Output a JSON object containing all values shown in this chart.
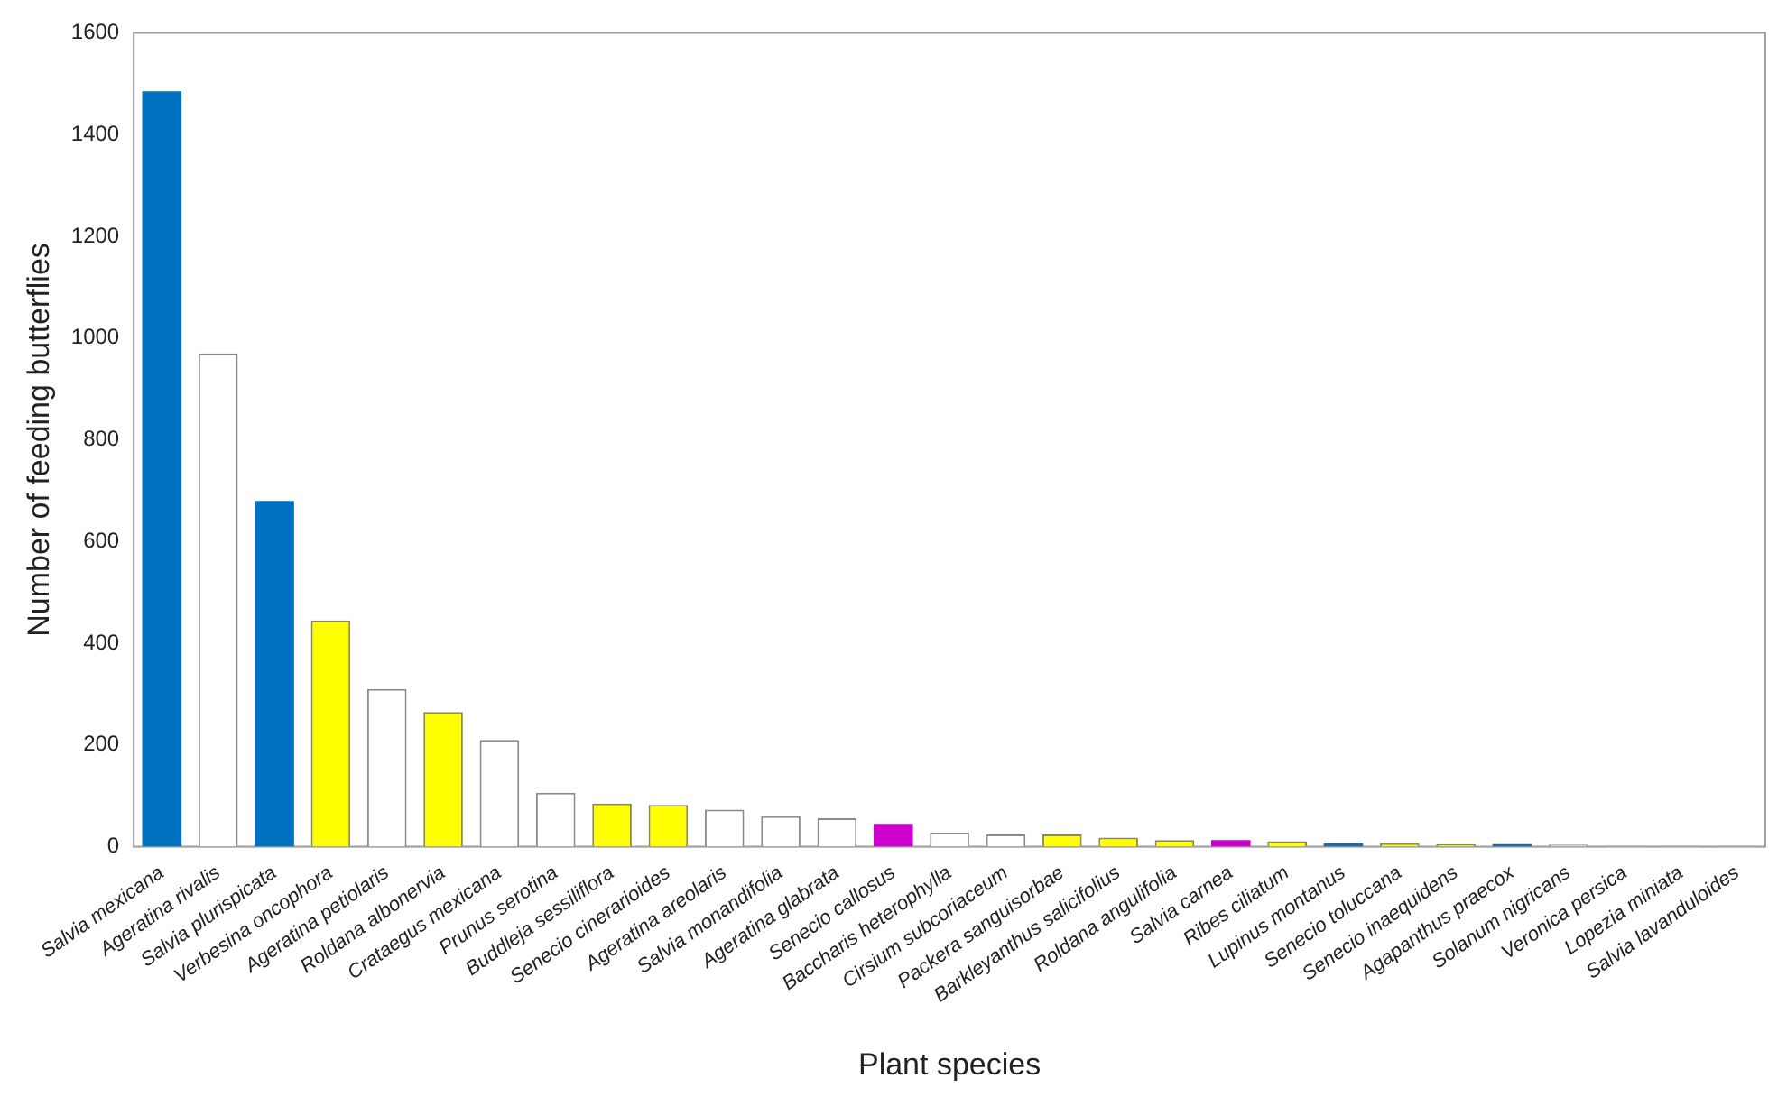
{
  "chart_data": {
    "type": "bar",
    "xlabel": "Plant species",
    "ylabel": "Number of feeding butterflies",
    "categories": [
      "Salvia mexicana",
      "Ageratina rivalis",
      "Salvia plurispicata",
      "Verbesina oncophora",
      "Ageratina petiolaris",
      "Roldana albonervia",
      "Crataegus mexicana",
      "Prunus serotina",
      "Buddleja sessiliflora",
      "Senecio cinerarioides",
      "Ageratina areolaris",
      "Salvia monandifolia",
      "Ageratina glabrata",
      "Senecio callosus",
      "Baccharis heterophylla",
      "Cirsium subcoriaceum",
      "Packera sanguisorbae",
      "Barkleyanthus salicifolius",
      "Roldana angulifolia",
      "Salvia carnea",
      "Ribes ciliatum",
      "Lupinus montanus",
      "Senecio toluccana",
      "Senecio inaequidens",
      "Agapanthus praecox",
      "Solanum nigricans",
      "Veronica persica",
      "Lopezia miniata",
      "Salvia lavanduloides"
    ],
    "values": [
      1485,
      970,
      680,
      445,
      310,
      265,
      210,
      106,
      85,
      82,
      73,
      60,
      56,
      45,
      28,
      24,
      24,
      18,
      13,
      13,
      11,
      7,
      7,
      5,
      5,
      4,
      2,
      2,
      2
    ],
    "colors": [
      "#0070c0",
      "#ffffff",
      "#0070c0",
      "#ffff00",
      "#ffffff",
      "#ffff00",
      "#ffffff",
      "#ffffff",
      "#ffff00",
      "#ffff00",
      "#ffffff",
      "#ffffff",
      "#ffffff",
      "#cc00cc",
      "#ffffff",
      "#ffffff",
      "#ffff00",
      "#ffff00",
      "#ffff00",
      "#cc00cc",
      "#ffff00",
      "#1f6aa5",
      "#ffff00",
      "#ffff00",
      "#1f6aa5",
      "#ffffff",
      "#ffffff",
      "#ffffff",
      "#ffffff"
    ],
    "ylim": [
      0,
      1600
    ],
    "yticks": [
      0,
      200,
      400,
      600,
      800,
      1000,
      1200,
      1400,
      1600
    ],
    "grid": false,
    "legend": false
  }
}
